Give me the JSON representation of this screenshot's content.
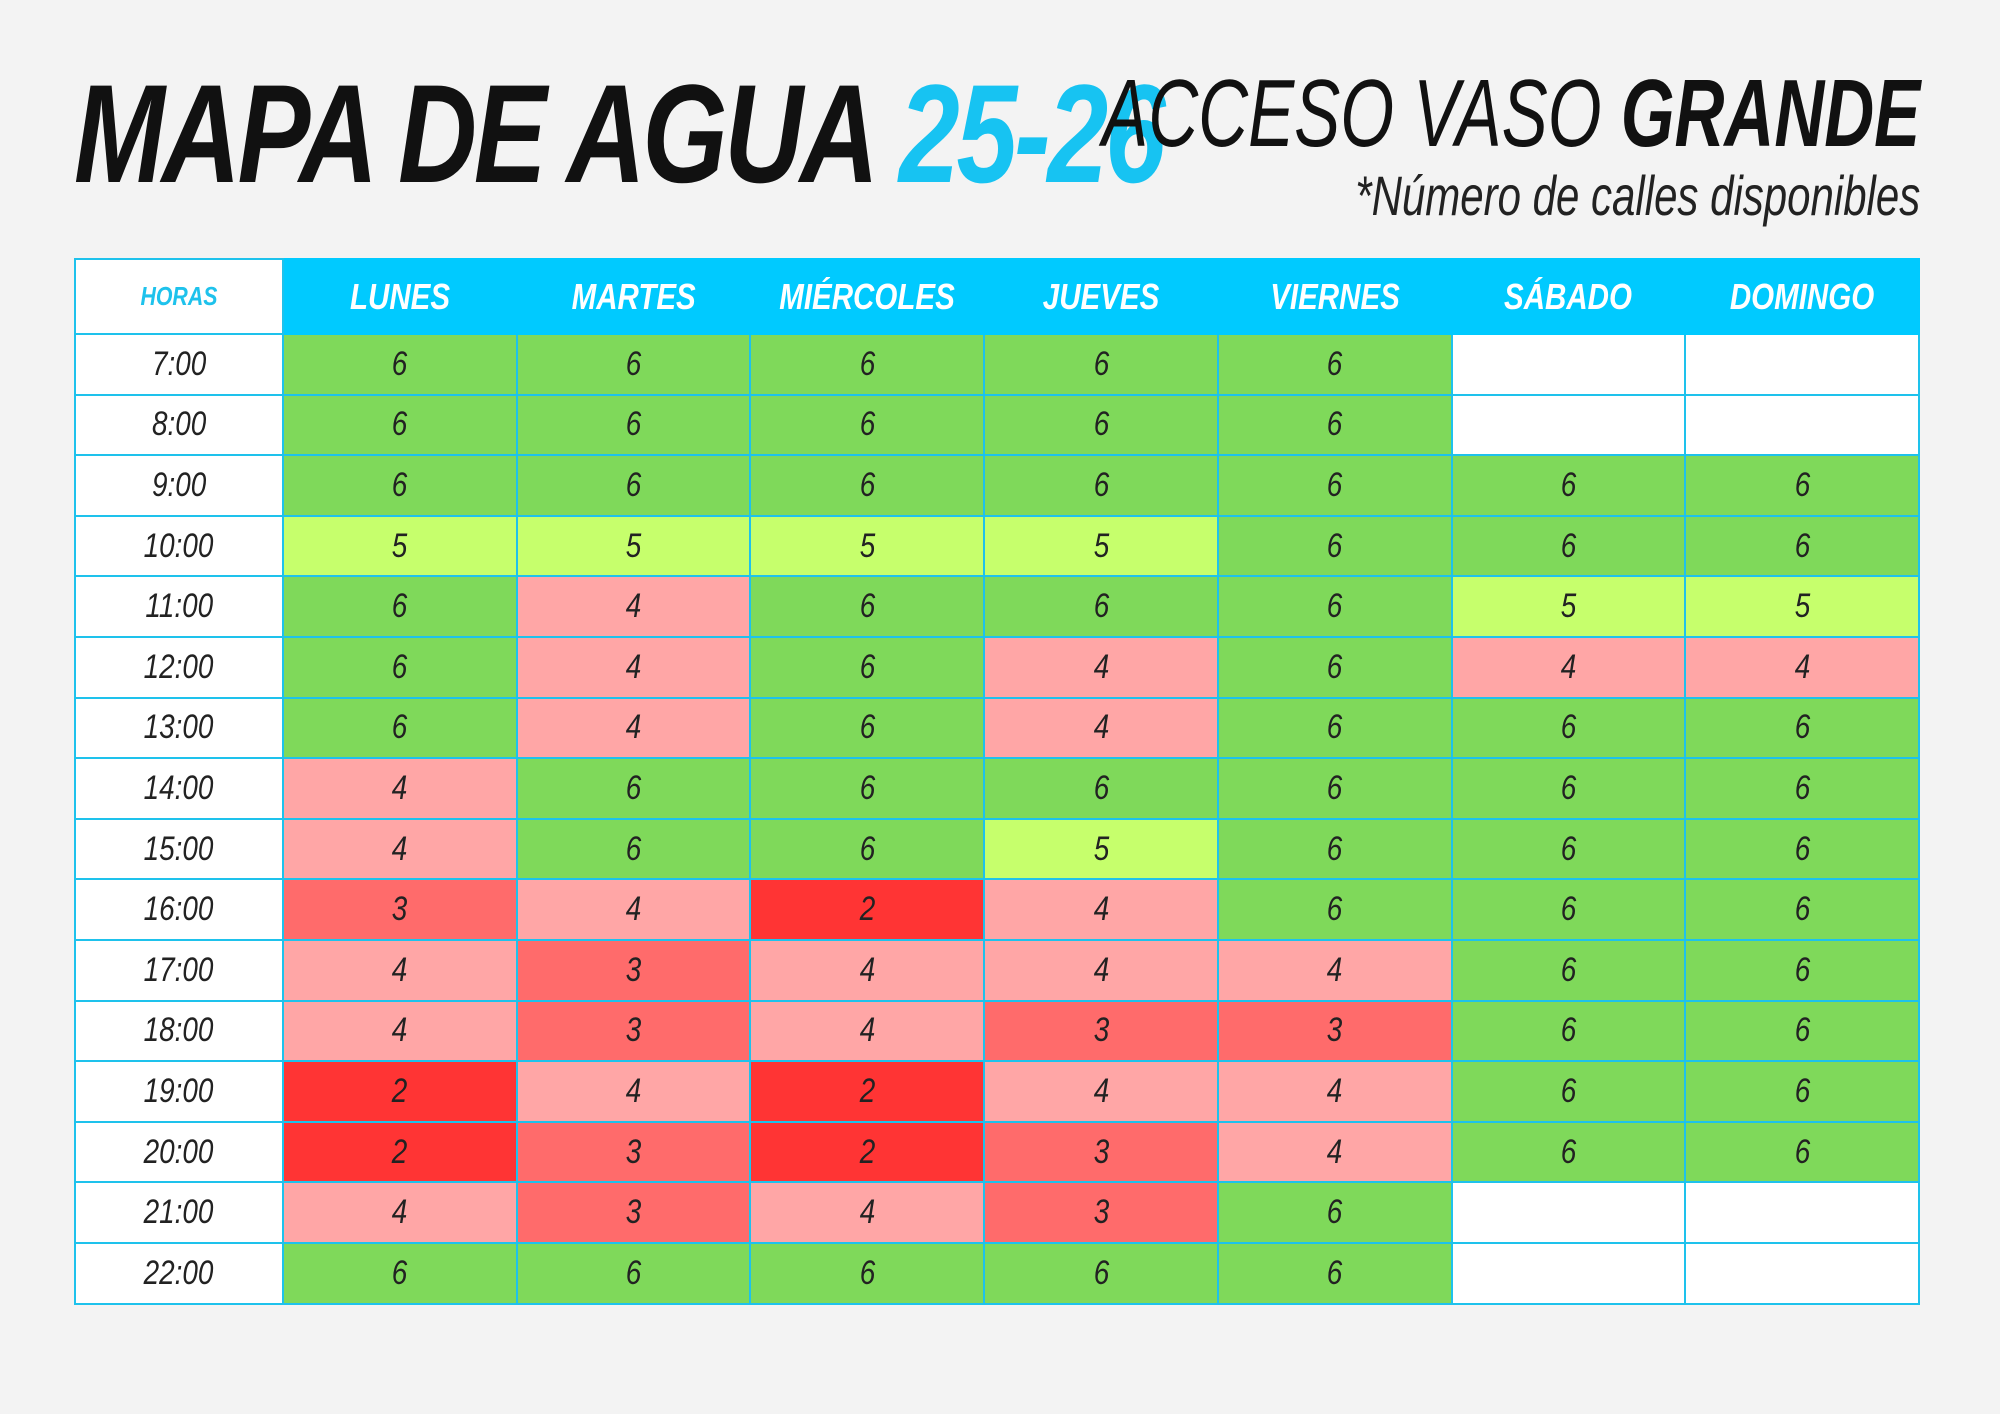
{
  "header": {
    "title_main": "MAPA DE AGUA",
    "title_year": "25-26",
    "access_prefix": "ACCESO VASO",
    "access_bold": "GRANDE",
    "note": "*Número de calles disponibles"
  },
  "table": {
    "corner_label": "HORAS",
    "days": [
      "LUNES",
      "MARTES",
      "MIÉRCOLES",
      "JUEVES",
      "VIERNES",
      "SÁBADO",
      "DOMINGO"
    ],
    "rows": [
      {
        "time": "7:00",
        "values": [
          "6",
          "6",
          "6",
          "6",
          "6",
          "",
          ""
        ]
      },
      {
        "time": "8:00",
        "values": [
          "6",
          "6",
          "6",
          "6",
          "6",
          "",
          ""
        ]
      },
      {
        "time": "9:00",
        "values": [
          "6",
          "6",
          "6",
          "6",
          "6",
          "6",
          "6"
        ]
      },
      {
        "time": "10:00",
        "values": [
          "5",
          "5",
          "5",
          "5",
          "6",
          "6",
          "6"
        ]
      },
      {
        "time": "11:00",
        "values": [
          "6",
          "4",
          "6",
          "6",
          "6",
          "5",
          "5"
        ]
      },
      {
        "time": "12:00",
        "values": [
          "6",
          "4",
          "6",
          "4",
          "6",
          "4",
          "4"
        ]
      },
      {
        "time": "13:00",
        "values": [
          "6",
          "4",
          "6",
          "4",
          "6",
          "6",
          "6"
        ]
      },
      {
        "time": "14:00",
        "values": [
          "4",
          "6",
          "6",
          "6",
          "6",
          "6",
          "6"
        ]
      },
      {
        "time": "15:00",
        "values": [
          "4",
          "6",
          "6",
          "5",
          "6",
          "6",
          "6"
        ]
      },
      {
        "time": "16:00",
        "values": [
          "3",
          "4",
          "2",
          "4",
          "6",
          "6",
          "6"
        ]
      },
      {
        "time": "17:00",
        "values": [
          "4",
          "3",
          "4",
          "4",
          "4",
          "6",
          "6"
        ]
      },
      {
        "time": "18:00",
        "values": [
          "4",
          "3",
          "4",
          "3",
          "3",
          "6",
          "6"
        ]
      },
      {
        "time": "19:00",
        "values": [
          "2",
          "4",
          "2",
          "4",
          "4",
          "6",
          "6"
        ]
      },
      {
        "time": "20:00",
        "values": [
          "2",
          "3",
          "2",
          "3",
          "4",
          "6",
          "6"
        ]
      },
      {
        "time": "21:00",
        "values": [
          "4",
          "3",
          "4",
          "3",
          "6",
          "",
          ""
        ]
      },
      {
        "time": "22:00",
        "values": [
          "6",
          "6",
          "6",
          "6",
          "6",
          "",
          ""
        ]
      }
    ]
  },
  "colors": {
    "accent": "#17c3f2",
    "header_bg": "#00caff",
    "lanes_6": "#7fd95a",
    "lanes_5": "#c6ff6c",
    "lanes_4": "#ffa6a6",
    "lanes_3": "#ff6b6b",
    "lanes_2": "#ff3434",
    "closed": "#ffffff"
  }
}
